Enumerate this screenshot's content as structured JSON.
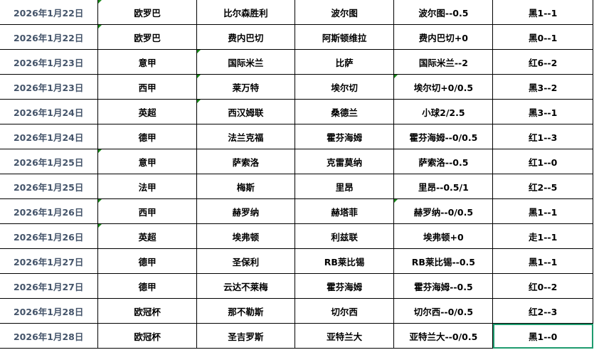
{
  "rows": [
    {
      "date": "2026年1月22日",
      "league": "欧罗巴",
      "home": "比尔森胜利",
      "away": "波尔图",
      "handicap": "波尔图--0.5",
      "result": "黑1--1"
    },
    {
      "date": "2026年1月22日",
      "league": "欧罗巴",
      "home": "费内巴切",
      "away": "阿斯顿维拉",
      "handicap": "费内巴切+0",
      "result": "黑0--1"
    },
    {
      "date": "2026年1月23日",
      "league": "意甲",
      "home": "国际米兰",
      "away": "比萨",
      "handicap": "国际米兰--2",
      "result": "红6--2"
    },
    {
      "date": "2026年1月23日",
      "league": "西甲",
      "home": "莱万特",
      "away": "埃尔切",
      "handicap": "埃尔切+0/0.5",
      "result": "黑3--2"
    },
    {
      "date": "2026年1月24日",
      "league": "英超",
      "home": "西汉姆联",
      "away": "桑德兰",
      "handicap": "小球2/2.5",
      "result": "黑3--1"
    },
    {
      "date": "2026年1月24日",
      "league": "德甲",
      "home": "法兰克福",
      "away": "霍芬海姆",
      "handicap": "霍芬海姆--0/0.5",
      "result": "红1--3"
    },
    {
      "date": "2026年1月25日",
      "league": "意甲",
      "home": "萨索洛",
      "away": "克雷莫纳",
      "handicap": "萨索洛--0.5",
      "result": "红1--0"
    },
    {
      "date": "2026年1月25日",
      "league": "法甲",
      "home": "梅斯",
      "away": "里昂",
      "handicap": "里昂--0.5/1",
      "result": "红2--5"
    },
    {
      "date": "2026年1月26日",
      "league": "西甲",
      "home": "赫罗纳",
      "away": "赫塔菲",
      "handicap": "赫罗纳--0/0.5",
      "result": "黑1--1"
    },
    {
      "date": "2026年1月26日",
      "league": "英超",
      "home": "埃弗顿",
      "away": "利兹联",
      "handicap": "埃弗顿+0",
      "result": "走1--1"
    },
    {
      "date": "2026年1月27日",
      "league": "德甲",
      "home": "圣保利",
      "away": "RB莱比锡",
      "handicap": "RB莱比锡--0.5",
      "result": "黑1--1"
    },
    {
      "date": "2026年1月27日",
      "league": "德甲",
      "home": "云达不莱梅",
      "away": "霍芬海姆",
      "handicap": "霍芬海姆--0.5",
      "result": "红0--2"
    },
    {
      "date": "2026年1月28日",
      "league": "欧冠杯",
      "home": "那不勒斯",
      "away": "切尔西",
      "handicap": "切尔西--0/0.5",
      "result": "红2--3"
    },
    {
      "date": "2026年1月28日",
      "league": "欧冠杯",
      "home": "圣吉罗斯",
      "away": "亚特兰大",
      "handicap": "亚特兰大--0/0.5",
      "result": "黑1--0"
    }
  ],
  "comment_marker_color": "#1a8a1a",
  "selection_color": "#1e9b6e"
}
